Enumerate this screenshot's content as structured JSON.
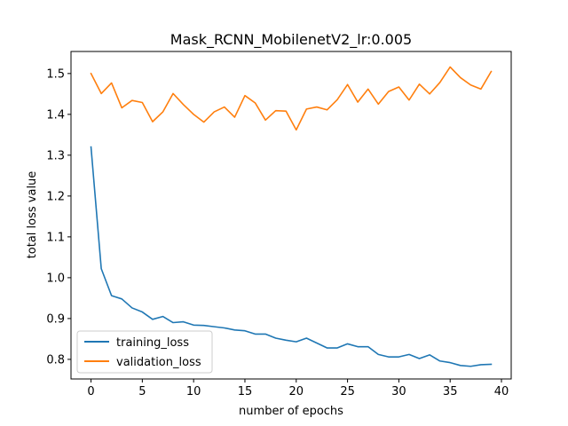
{
  "chart_data": {
    "type": "line",
    "title": "Mask_RCNN_MobilenetV2_lr:0.005",
    "xlabel": "number of epochs",
    "ylabel": "total loss value",
    "xlim": [
      -1.95,
      40.95
    ],
    "ylim": [
      0.752,
      1.554
    ],
    "xticks": [
      0,
      5,
      10,
      15,
      20,
      25,
      30,
      35,
      40
    ],
    "yticks": [
      0.8,
      0.9,
      1.0,
      1.1,
      1.2,
      1.3,
      1.4,
      1.5
    ],
    "ytick_labels": [
      "0.8",
      "0.9",
      "1.0",
      "1.1",
      "1.2",
      "1.3",
      "1.4",
      "1.5"
    ],
    "grid": false,
    "legend_position": "lower-left",
    "x": [
      0,
      1,
      2,
      3,
      4,
      5,
      6,
      7,
      8,
      9,
      10,
      11,
      12,
      13,
      14,
      15,
      16,
      17,
      18,
      19,
      20,
      21,
      22,
      23,
      24,
      25,
      26,
      27,
      28,
      29,
      30,
      31,
      32,
      33,
      34,
      35,
      36,
      37,
      38,
      39
    ],
    "series": [
      {
        "name": "training_loss",
        "color": "#1f77b4",
        "values": [
          1.32,
          1.022,
          0.956,
          0.948,
          0.926,
          0.916,
          0.898,
          0.905,
          0.89,
          0.892,
          0.884,
          0.883,
          0.88,
          0.877,
          0.872,
          0.87,
          0.862,
          0.862,
          0.852,
          0.847,
          0.843,
          0.852,
          0.84,
          0.828,
          0.828,
          0.838,
          0.831,
          0.831,
          0.812,
          0.806,
          0.806,
          0.812,
          0.802,
          0.811,
          0.796,
          0.792,
          0.785,
          0.783,
          0.787,
          0.788
        ]
      },
      {
        "name": "validation_loss",
        "color": "#ff7f0e",
        "values": [
          1.5,
          1.451,
          1.477,
          1.416,
          1.434,
          1.429,
          1.382,
          1.406,
          1.451,
          1.424,
          1.4,
          1.381,
          1.406,
          1.418,
          1.393,
          1.446,
          1.428,
          1.386,
          1.409,
          1.408,
          1.362,
          1.413,
          1.418,
          1.411,
          1.436,
          1.473,
          1.43,
          1.462,
          1.425,
          1.456,
          1.467,
          1.435,
          1.474,
          1.45,
          1.478,
          1.516,
          1.49,
          1.472,
          1.462,
          1.505
        ]
      }
    ]
  }
}
